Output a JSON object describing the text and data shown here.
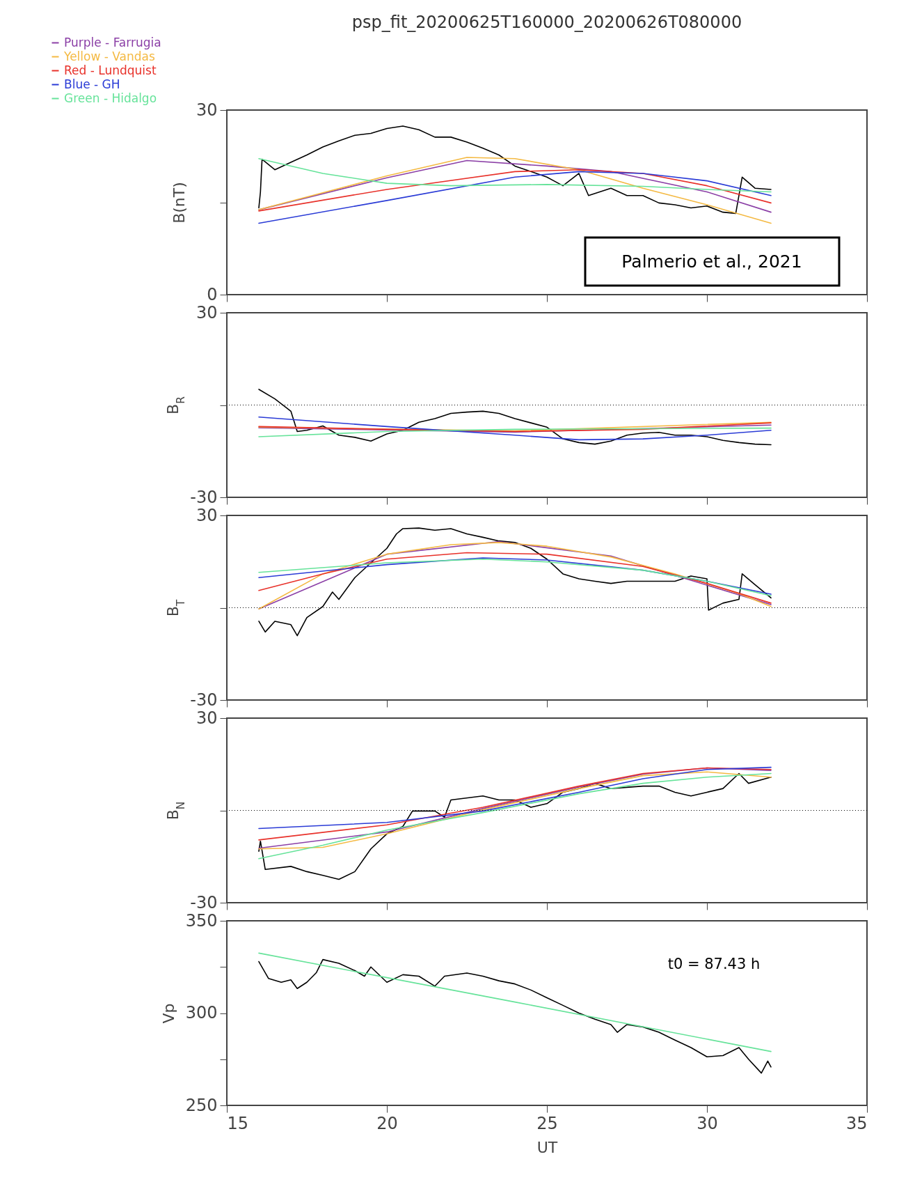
{
  "chart_data": [
    {
      "type": "line",
      "title": "psp_fit_20200625T160000_20200626T080000",
      "ylabel": "B(nT)",
      "xlim": [
        15,
        35
      ],
      "xticks": [
        15,
        20,
        25,
        30,
        35
      ],
      "ylim": [
        0,
        30
      ],
      "yticks": [
        0,
        {
          "value": 15,
          "label": null
        },
        30
      ],
      "tick_labels": "y",
      "legend": "top left",
      "grid": false,
      "annotations": [
        "Palmerio et al., 2021"
      ],
      "series": [
        {
          "color": "#000000",
          "x": [
            16,
            16.05,
            16.1,
            16.5,
            17,
            17.5,
            18,
            18.5,
            19,
            19.5,
            20,
            20.5,
            21,
            21.5,
            22,
            22.5,
            23,
            23.5,
            24,
            24.5,
            25,
            25.5,
            26,
            26.3,
            27,
            27.5,
            28,
            28.5,
            29,
            29.5,
            30,
            30.5,
            30.9,
            31.1,
            31.5,
            32
          ],
          "values": [
            14.1,
            16.7,
            22,
            20.3,
            21.5,
            22.7,
            24,
            25,
            25.9,
            26.2,
            27,
            27.4,
            26.8,
            25.6,
            25.6,
            24.8,
            23.8,
            22.7,
            20.9,
            20,
            19.1,
            17.7,
            19.7,
            16.1,
            17.3,
            16.1,
            16.1,
            14.9,
            14.6,
            14.1,
            14.4,
            13.4,
            13.2,
            19.1,
            17.3,
            17.1
          ]
        },
        {
          "name": "Purple - Farrugia",
          "color": "#8b3fa6",
          "x": [
            16,
            20,
            22.5,
            25,
            27,
            30,
            32
          ],
          "values": [
            13.8,
            19,
            21.8,
            20.9,
            20,
            16.7,
            13.4
          ]
        },
        {
          "name": "Yellow - Vandas",
          "color": "#f4b942",
          "x": [
            16,
            20,
            22.5,
            24,
            26,
            28,
            30,
            32
          ],
          "values": [
            13.8,
            19.3,
            22.3,
            22.1,
            20.3,
            17.3,
            14.6,
            11.6
          ]
        },
        {
          "name": "Red - Lundquist",
          "color": "#e8312a",
          "x": [
            16,
            20,
            24,
            26,
            28,
            30,
            32
          ],
          "values": [
            13.6,
            17.1,
            20,
            20.3,
            19.7,
            17.7,
            14.9
          ]
        },
        {
          "name": "Blue - GH",
          "color": "#2a3bd6",
          "x": [
            16,
            20,
            24,
            26,
            28,
            30,
            32
          ],
          "values": [
            11.6,
            15.3,
            19.1,
            20,
            19.7,
            18.5,
            16.1
          ]
        },
        {
          "name": "Green - Hidalgo",
          "color": "#66e39a",
          "x": [
            16,
            18,
            20,
            22,
            25,
            28,
            30,
            32
          ],
          "values": [
            22.1,
            19.7,
            18.1,
            17.7,
            17.9,
            17.6,
            17.1,
            16.7
          ]
        }
      ]
    },
    {
      "type": "line",
      "ylabel": "B$_{R}$",
      "xlim": [
        15,
        35
      ],
      "xticks": [
        15,
        20,
        25,
        30,
        35
      ],
      "ylim": [
        -30,
        30
      ],
      "yticks": [
        -30,
        {
          "value": 0,
          "label": null
        },
        30
      ],
      "tick_labels": "y",
      "grid": false,
      "ref_lines": [
        {
          "axis": "y",
          "value": 0,
          "line_style": "dotted"
        }
      ],
      "series": [
        {
          "color": "#000000",
          "x": [
            16,
            16.5,
            17,
            17.2,
            17.5,
            18,
            18.5,
            19,
            19.5,
            20,
            20.5,
            21,
            21.5,
            22,
            22.5,
            23,
            23.5,
            24,
            24.5,
            25,
            25.5,
            26,
            26.5,
            27,
            27.5,
            28,
            28.5,
            29,
            29.5,
            30,
            30.5,
            31,
            31.5,
            32
          ],
          "values": [
            5.1,
            2,
            -2,
            -8.6,
            -8.2,
            -6.8,
            -9.8,
            -10.5,
            -11.7,
            -9.4,
            -8.2,
            -5.6,
            -4.4,
            -2.7,
            -2.3,
            -2,
            -2.7,
            -4.4,
            -5.8,
            -7.2,
            -11,
            -12.2,
            -12.7,
            -11.7,
            -9.8,
            -9.1,
            -8.9,
            -9.8,
            -9.8,
            -10.3,
            -11.5,
            -12.2,
            -12.7,
            -12.9
          ]
        },
        {
          "color": "#8b3fa6",
          "x": [
            16,
            24,
            32
          ],
          "values": [
            -7.4,
            -8.8,
            -6.5
          ]
        },
        {
          "color": "#f4b942",
          "x": [
            16,
            24,
            32
          ],
          "values": [
            -7.2,
            -8.4,
            -5.6
          ]
        },
        {
          "color": "#e8312a",
          "x": [
            16,
            20,
            24,
            28,
            32
          ],
          "values": [
            -7,
            -7.9,
            -8.6,
            -7.9,
            -5.8
          ]
        },
        {
          "color": "#2a3bd6",
          "x": [
            16,
            20,
            24,
            26,
            28,
            30,
            32
          ],
          "values": [
            -3.9,
            -7,
            -9.8,
            -11.3,
            -11,
            -9.8,
            -8.2
          ]
        },
        {
          "color": "#66e39a",
          "x": [
            16,
            20,
            24,
            28,
            32
          ],
          "values": [
            -10.3,
            -8.6,
            -7.9,
            -7.7,
            -7.5
          ]
        }
      ]
    },
    {
      "type": "line",
      "ylabel": "B$_{T}$",
      "xlim": [
        15,
        35
      ],
      "xticks": [
        15,
        20,
        25,
        30,
        35
      ],
      "ylim": [
        -30,
        30
      ],
      "yticks": [
        -30,
        {
          "value": 0,
          "label": null
        },
        30
      ],
      "tick_labels": "y",
      "grid": false,
      "ref_lines": [
        {
          "axis": "y",
          "value": 0,
          "line_style": "dotted"
        }
      ],
      "series": [
        {
          "color": "#000000",
          "x": [
            16,
            16.2,
            16.5,
            17,
            17.2,
            17.5,
            18,
            18.3,
            18.5,
            19,
            19.5,
            20,
            20.3,
            20.5,
            21,
            21.5,
            22,
            22.5,
            23,
            23.5,
            24,
            24.5,
            25,
            25.5,
            26,
            26.5,
            27,
            27.5,
            28,
            28.5,
            29,
            29.5,
            30,
            30.05,
            30.5,
            31,
            31.1,
            31.5,
            32
          ],
          "values": [
            -4.4,
            -7.9,
            -4.4,
            -5.5,
            -9.1,
            -3.2,
            0.4,
            5.1,
            2.7,
            9.8,
            14.6,
            19.3,
            24,
            25.7,
            25.9,
            25.2,
            25.7,
            24,
            22.9,
            21.7,
            21.2,
            19.3,
            15.8,
            11,
            9.4,
            8.6,
            7.9,
            8.6,
            8.6,
            8.6,
            8.6,
            10.3,
            9.4,
            -0.8,
            1.5,
            2.7,
            11,
            7.5,
            3.2
          ]
        },
        {
          "color": "#8b3fa6",
          "x": [
            16,
            20,
            23.5,
            27,
            32
          ],
          "values": [
            -0.4,
            17.4,
            21.5,
            16.8,
            1
          ]
        },
        {
          "color": "#f4b942",
          "x": [
            16,
            18,
            20,
            22,
            23.5,
            25,
            27,
            29,
            31,
            32
          ],
          "values": [
            -0.4,
            11,
            17.4,
            20.5,
            21.2,
            20,
            16.5,
            11,
            4.6,
            0.4
          ]
        },
        {
          "color": "#e8312a",
          "x": [
            16,
            18,
            20,
            22.5,
            25,
            28,
            30,
            32
          ],
          "values": [
            5.6,
            11,
            15.8,
            17.9,
            17.4,
            13.4,
            7.9,
            1.5
          ]
        },
        {
          "color": "#2a3bd6",
          "x": [
            16,
            20,
            23,
            25,
            28,
            30,
            32
          ],
          "values": [
            9.8,
            14,
            16.2,
            15.5,
            12.2,
            8.6,
            4.4
          ]
        },
        {
          "color": "#66e39a",
          "x": [
            16,
            20,
            23,
            25,
            28,
            30,
            32
          ],
          "values": [
            11.5,
            14.6,
            15.8,
            14.9,
            12.2,
            8.6,
            3.9
          ]
        }
      ]
    },
    {
      "type": "line",
      "ylabel": "B$_{N}$",
      "xlim": [
        15,
        35
      ],
      "xticks": [
        15,
        20,
        25,
        30,
        35
      ],
      "ylim": [
        -30,
        30
      ],
      "yticks": [
        -30,
        {
          "value": 0,
          "label": null
        },
        30
      ],
      "tick_labels": "y",
      "grid": false,
      "ref_lines": [
        {
          "axis": "y",
          "value": 0,
          "line_style": "dotted"
        }
      ],
      "series": [
        {
          "color": "#000000",
          "x": [
            16,
            16.05,
            16.2,
            17,
            17.5,
            18,
            18.5,
            19,
            19.5,
            20,
            20.5,
            20.8,
            21.5,
            21.8,
            22,
            23,
            23.5,
            24,
            24.5,
            25,
            25.5,
            26,
            26.5,
            27,
            28,
            28.5,
            29,
            29.5,
            30,
            30.5,
            31,
            31.3,
            32
          ],
          "values": [
            -13.3,
            -10,
            -19.2,
            -18.2,
            -19.9,
            -21.1,
            -22.4,
            -19.9,
            -12.5,
            -7.6,
            -5.2,
            -0.2,
            -0.2,
            -2.2,
            3.4,
            4.7,
            3.4,
            3.4,
            1,
            2.2,
            5.9,
            7.1,
            8.8,
            7.1,
            7.9,
            7.9,
            5.9,
            4.7,
            5.9,
            7.1,
            12,
            8.8,
            10.8
          ]
        },
        {
          "color": "#8b3fa6",
          "x": [
            16,
            20,
            23,
            26,
            28,
            30,
            32
          ],
          "values": [
            -12.3,
            -7,
            0.6,
            7.6,
            11.8,
            13.8,
            13
          ]
        },
        {
          "color": "#f4b942",
          "x": [
            16,
            18,
            20,
            23,
            26,
            28,
            30,
            32
          ],
          "values": [
            -12.5,
            -12,
            -7.6,
            0.2,
            7.1,
            11.3,
            12.5,
            10.8
          ]
        },
        {
          "color": "#e8312a",
          "x": [
            16,
            20,
            23,
            26,
            28,
            30,
            32
          ],
          "values": [
            -9.6,
            -4.7,
            1,
            7.9,
            12,
            13.8,
            13.3
          ]
        },
        {
          "color": "#2a3bd6",
          "x": [
            16,
            20,
            23,
            26,
            28,
            30,
            32
          ],
          "values": [
            -5.9,
            -3.9,
            -0.2,
            5.9,
            10.3,
            13.3,
            14
          ]
        },
        {
          "color": "#66e39a",
          "x": [
            16,
            18,
            20,
            23,
            26,
            28,
            30,
            32
          ],
          "values": [
            -15.7,
            -11.3,
            -6.4,
            -0.7,
            5.4,
            8.8,
            10.8,
            12
          ]
        }
      ]
    },
    {
      "type": "line",
      "ylabel": "Vp",
      "xlabel": "UT",
      "xlim": [
        15,
        35
      ],
      "xticks": [
        15,
        20,
        25,
        30,
        35
      ],
      "ylim": [
        250,
        350
      ],
      "yticks": [
        250,
        {
          "value": 275,
          "label": null
        },
        300,
        {
          "value": 325,
          "label": null
        },
        350
      ],
      "grid": false,
      "annotations": [
        "t0 = 87.43 h"
      ],
      "series": [
        {
          "color": "#000000",
          "x": [
            16,
            16.3,
            16.7,
            17,
            17.2,
            17.5,
            17.8,
            18,
            18.5,
            19,
            19.3,
            19.5,
            20,
            20.5,
            21,
            21.5,
            21.8,
            22.5,
            23,
            23.5,
            24,
            24.5,
            25,
            25.5,
            26,
            26.5,
            27,
            27.2,
            27.5,
            28,
            28.5,
            29,
            29.5,
            30,
            30.5,
            31,
            31.3,
            31.7,
            31.9,
            32
          ],
          "values": [
            327.9,
            318.8,
            316.7,
            318,
            313.3,
            316.7,
            322,
            329,
            327,
            323,
            320,
            325,
            316.7,
            320.8,
            320,
            314.6,
            320,
            321.7,
            320,
            317.5,
            315.8,
            312.5,
            308.3,
            304.2,
            300,
            296.7,
            293.8,
            289.6,
            293.8,
            292.5,
            289.6,
            285.4,
            281.3,
            276.3,
            277,
            281.3,
            275,
            267.5,
            274,
            270.8
          ]
        },
        {
          "color": "#66e39a",
          "x": [
            16,
            24,
            32
          ],
          "values": [
            332.5,
            306,
            279.2
          ]
        }
      ]
    }
  ]
}
